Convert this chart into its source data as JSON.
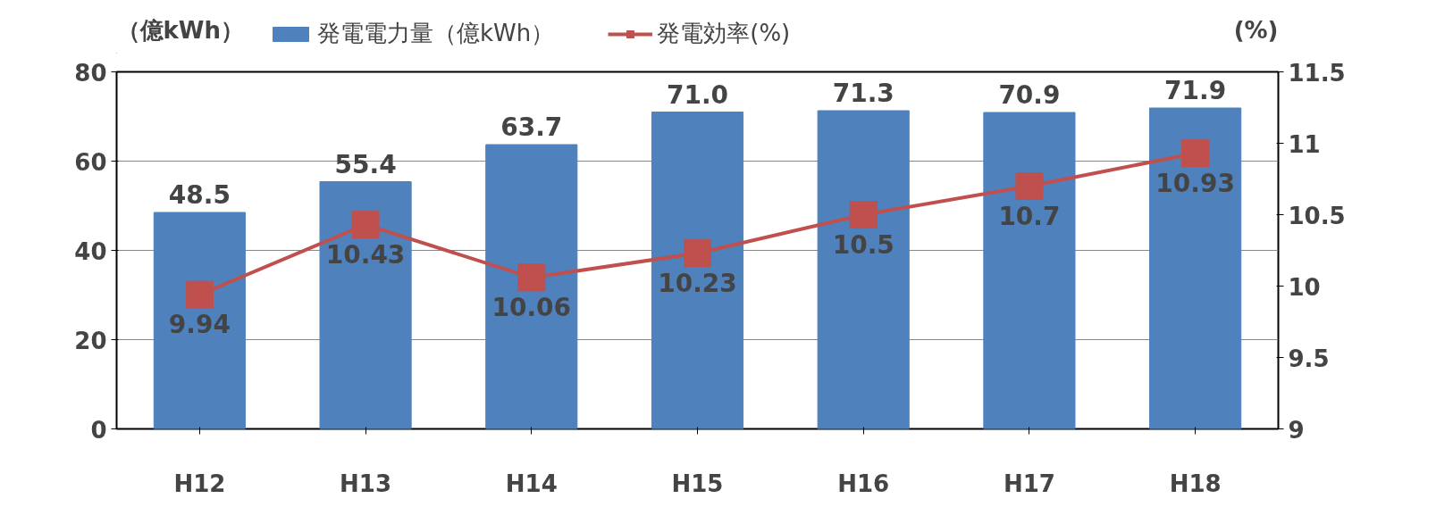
{
  "chart_data": {
    "type": "bar",
    "ylabel": "（億kWh）",
    "y2label": "(%)",
    "categories": [
      "H12",
      "H13",
      "H14",
      "H15",
      "H16",
      "H17",
      "H18"
    ],
    "series": [
      {
        "name": "発電電力量（億kWh）",
        "color": "#4f81bd",
        "values": [
          48.5,
          55.4,
          63.7,
          71.0,
          71.3,
          70.9,
          71.9
        ],
        "value_labels": [
          "48.5",
          "55.4",
          "63.7",
          "71.0",
          "71.3",
          "70.9",
          "71.9"
        ]
      },
      {
        "name": "発電効率(%)",
        "type": "line",
        "axis": "y2",
        "color": "#c0504d",
        "marker": "square",
        "values": [
          9.94,
          10.43,
          10.06,
          10.23,
          10.5,
          10.7,
          10.93
        ]
      }
    ],
    "ylim": [
      0,
      80
    ],
    "yticks": [
      0,
      20,
      40,
      60,
      80
    ],
    "y2lim": [
      9,
      11.5
    ],
    "y2ticks": [
      9,
      9.5,
      10,
      10.5,
      11,
      11.5
    ],
    "grid": "y",
    "legend": "top",
    "data_labels": true
  }
}
